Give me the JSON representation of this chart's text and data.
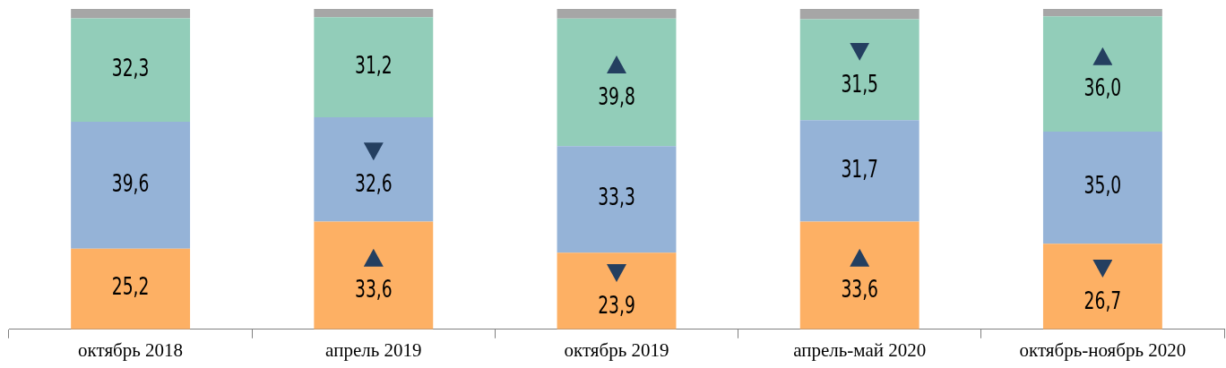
{
  "chart_data": {
    "type": "bar",
    "stacked": true,
    "categories": [
      "октябрь 2018",
      "апрель 2019",
      "октябрь 2019",
      "апрель-май 2020",
      "октябрь-ноябрь 2020"
    ],
    "series": [
      {
        "color": "#fdb064",
        "values": [
          25.2,
          33.6,
          23.9,
          33.6,
          26.7
        ],
        "value_labels": [
          "25,2",
          "33,6",
          "23,9",
          "33,6",
          "26,7"
        ]
      },
      {
        "color": "#95b3d7",
        "values": [
          39.6,
          32.6,
          33.3,
          31.7,
          35.0
        ],
        "value_labels": [
          "39,6",
          "32,6",
          "33,3",
          "31,7",
          "35,0"
        ]
      },
      {
        "color": "#92cdb9",
        "values": [
          32.3,
          31.2,
          39.8,
          31.5,
          36.0
        ],
        "value_labels": [
          "32,3",
          "31,2",
          "39,8",
          "31,5",
          "36,0"
        ]
      },
      {
        "color": "#a6a6a6",
        "values": [
          2.9,
          2.6,
          3.0,
          3.2,
          2.3
        ],
        "value_labels": [
          null,
          null,
          null,
          null,
          null
        ]
      }
    ],
    "ylim": [
      0,
      100
    ],
    "tick_labels": "x",
    "grid": false,
    "legend": false
  }
}
